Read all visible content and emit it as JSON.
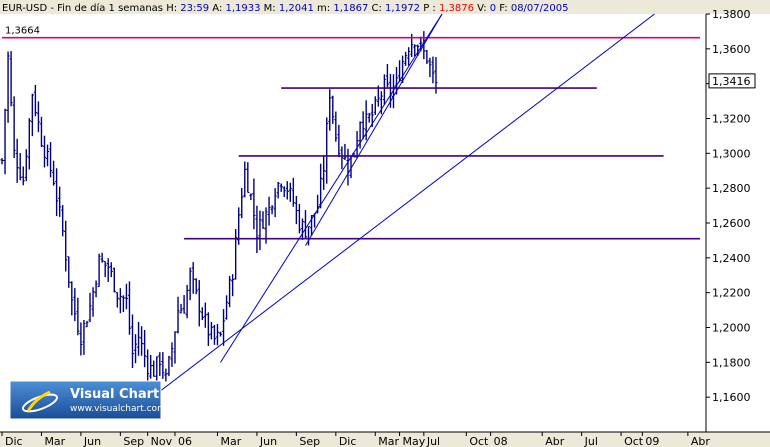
{
  "header": {
    "symbol": "EUR-USD",
    "period": "Fin de día 1 semanas",
    "fields": [
      {
        "label": "H:",
        "value": "23:59",
        "color": "#0000c0"
      },
      {
        "label": "A:",
        "value": "1,1933",
        "color": "#0000c0"
      },
      {
        "label": "M:",
        "value": "1,2041",
        "color": "#0000c0"
      },
      {
        "label": "m:",
        "value": "1,1867",
        "color": "#0000c0"
      },
      {
        "label": "C:",
        "value": "1,1972",
        "color": "#0000c0"
      },
      {
        "label": "P :",
        "value": "1,3876",
        "color": "#ff0000"
      },
      {
        "label": "V:",
        "value": "0",
        "color": "#0000c0"
      },
      {
        "label": "F:",
        "value": "08/07/2005",
        "color": "#0000c0"
      }
    ]
  },
  "logo": {
    "title": "Visual Chart",
    "url": "www.visualchart.com"
  },
  "colors": {
    "bars": "#000080",
    "trendlines": "#0000c8",
    "support": "#400080",
    "top_line": "#e0006a",
    "price_badge": "#ffffff"
  },
  "chart_data": {
    "type": "ohlc",
    "title": "",
    "y_axis": {
      "position": "right",
      "min": 1.14,
      "max": 1.38,
      "ticks": [
        "1,1600",
        "1,1800",
        "1,2000",
        "1,2200",
        "1,2400",
        "1,2600",
        "1,2800",
        "1,3000",
        "1,3200",
        "1,3400",
        "1,3600",
        "1,3800"
      ],
      "tick_values": [
        1.16,
        1.18,
        1.2,
        1.22,
        1.24,
        1.26,
        1.28,
        1.3,
        1.32,
        1.34,
        1.36,
        1.38
      ]
    },
    "x_axis": {
      "labels": [
        "Dic",
        "Mar",
        "Jun",
        "Sep",
        "Nov",
        "06",
        "Mar",
        "Jun",
        "Sep",
        "Dic",
        "Mar",
        "May",
        "Jul",
        "Oct",
        "08",
        "Abr",
        "Jul",
        "Oct",
        "09",
        "Abr"
      ],
      "label_week_index": [
        0,
        13,
        26,
        39,
        48,
        57,
        71,
        84,
        97,
        110,
        123,
        131,
        139,
        153,
        161,
        178,
        191,
        204,
        211,
        226
      ],
      "weeks_total": 230
    },
    "current_price": "1,3416",
    "current_price_value": 1.3416,
    "annotations": [
      {
        "text": "1,3664",
        "value": 1.3664
      }
    ],
    "horizontal_lines": [
      {
        "role": "resistance-top",
        "y": 1.3664,
        "from_week": 0,
        "to_week": 230
      },
      {
        "role": "support",
        "y": 1.3375,
        "from_week": 92,
        "to_week": 196
      },
      {
        "role": "support",
        "y": 1.2985,
        "from_week": 78,
        "to_week": 218
      },
      {
        "role": "support",
        "y": 1.251,
        "from_week": 60,
        "to_week": 230
      }
    ],
    "trend_lines": [
      {
        "from": [
          48,
          1.158
        ],
        "to": [
          215,
          1.38
        ]
      },
      {
        "from": [
          72,
          1.18
        ],
        "to": [
          145,
          1.38
        ]
      },
      {
        "from": [
          100,
          1.247
        ],
        "to": [
          145,
          1.38
        ]
      }
    ],
    "anchors": [
      [
        0,
        1.296
      ],
      [
        2,
        1.355
      ],
      [
        4,
        1.3
      ],
      [
        7,
        1.285
      ],
      [
        10,
        1.335
      ],
      [
        13,
        1.308
      ],
      [
        17,
        1.285
      ],
      [
        20,
        1.255
      ],
      [
        23,
        1.215
      ],
      [
        26,
        1.195
      ],
      [
        29,
        1.212
      ],
      [
        32,
        1.238
      ],
      [
        35,
        1.235
      ],
      [
        38,
        1.22
      ],
      [
        41,
        1.215
      ],
      [
        43,
        1.185
      ],
      [
        45,
        1.195
      ],
      [
        48,
        1.178
      ],
      [
        50,
        1.175
      ],
      [
        52,
        1.182
      ],
      [
        54,
        1.17
      ],
      [
        56,
        1.188
      ],
      [
        58,
        1.21
      ],
      [
        60,
        1.212
      ],
      [
        62,
        1.23
      ],
      [
        64,
        1.218
      ],
      [
        66,
        1.208
      ],
      [
        68,
        1.198
      ],
      [
        70,
        1.193
      ],
      [
        72,
        1.195
      ],
      [
        74,
        1.215
      ],
      [
        76,
        1.232
      ],
      [
        78,
        1.265
      ],
      [
        80,
        1.29
      ],
      [
        82,
        1.275
      ],
      [
        84,
        1.255
      ],
      [
        86,
        1.262
      ],
      [
        88,
        1.268
      ],
      [
        90,
        1.28
      ],
      [
        92,
        1.285
      ],
      [
        94,
        1.28
      ],
      [
        96,
        1.272
      ],
      [
        98,
        1.26
      ],
      [
        100,
        1.256
      ],
      [
        102,
        1.262
      ],
      [
        104,
        1.27
      ],
      [
        106,
        1.292
      ],
      [
        108,
        1.335
      ],
      [
        110,
        1.31
      ],
      [
        112,
        1.3
      ],
      [
        114,
        1.293
      ],
      [
        116,
        1.3
      ],
      [
        118,
        1.32
      ],
      [
        120,
        1.318
      ],
      [
        122,
        1.322
      ],
      [
        124,
        1.33
      ],
      [
        126,
        1.338
      ],
      [
        128,
        1.335
      ],
      [
        130,
        1.34
      ],
      [
        132,
        1.353
      ],
      [
        134,
        1.362
      ],
      [
        136,
        1.366
      ],
      [
        138,
        1.36
      ],
      [
        140,
        1.355
      ],
      [
        142,
        1.344
      ],
      [
        143,
        1.34
      ]
    ]
  }
}
